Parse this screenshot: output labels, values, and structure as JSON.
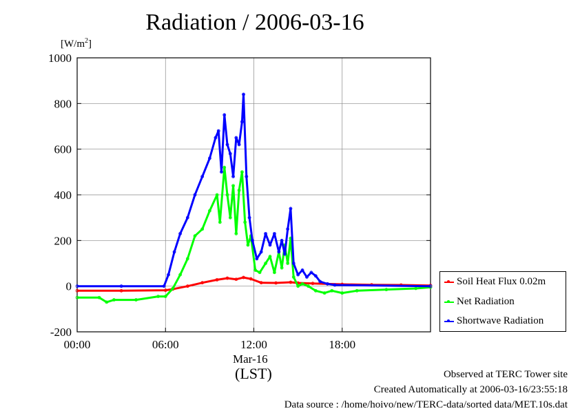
{
  "title": "Radiation / 2006-03-16",
  "unit": {
    "base": "[W/m",
    "sup": "2",
    "close": "]"
  },
  "xsub": {
    "date": "Mar-16",
    "zone": "(LST)"
  },
  "legend": [
    {
      "label": "Soil Heat Flux 0.02m",
      "color": "#ff0000"
    },
    {
      "label": "Net Radiation",
      "color": "#00ff00"
    },
    {
      "label": "Shortwave Radiation",
      "color": "#0000ff"
    }
  ],
  "footer": {
    "line1": "Observed at TERC Tower site",
    "line2": "Created Automatically at 2006-03-16/23:55:18",
    "line3": "Data source : /home/hoivo/new/TERC-data/sorted  data/MET.10s.dat"
  },
  "chart_data": {
    "type": "line",
    "title": "Radiation / 2006-03-16",
    "xlabel": "(LST)",
    "ylabel": "[W/m2]",
    "xlim": [
      0,
      24
    ],
    "ylim": [
      -200,
      1000
    ],
    "xticks": [
      {
        "value": 0,
        "label": "00:00"
      },
      {
        "value": 6,
        "label": "06:00"
      },
      {
        "value": 12,
        "label": "12:00"
      },
      {
        "value": 18,
        "label": "18:00"
      }
    ],
    "yticks": [
      -200,
      0,
      200,
      400,
      600,
      800,
      1000
    ],
    "grid": true,
    "legend_position": "right-bottom",
    "series": [
      {
        "name": "Soil Heat Flux 0.02m",
        "color": "#ff0000",
        "x": [
          0,
          3,
          6,
          6.5,
          7.5,
          8.5,
          9.5,
          10.2,
          10.8,
          11.3,
          11.8,
          12.5,
          13.5,
          14.5,
          15,
          16,
          17,
          18,
          20,
          22,
          24
        ],
        "y": [
          -20,
          -20,
          -18,
          -13,
          0,
          15,
          28,
          35,
          30,
          38,
          32,
          15,
          14,
          17,
          14,
          12,
          10,
          8,
          6,
          5,
          3
        ]
      },
      {
        "name": "Net Radiation",
        "color": "#00ff00",
        "x": [
          0,
          1.5,
          2,
          2.5,
          4,
          5.5,
          6,
          6.5,
          7,
          7.5,
          8,
          8.5,
          9,
          9.5,
          9.7,
          10,
          10.2,
          10.4,
          10.6,
          10.8,
          11,
          11.2,
          11.4,
          11.6,
          11.8,
          12.1,
          12.4,
          12.8,
          13.1,
          13.4,
          13.7,
          13.9,
          14.1,
          14.3,
          14.5,
          14.7,
          15,
          15.3,
          15.7,
          16.2,
          16.8,
          17.3,
          18,
          19,
          21,
          23,
          24
        ],
        "y": [
          -50,
          -50,
          -70,
          -60,
          -60,
          -45,
          -45,
          -10,
          50,
          120,
          220,
          250,
          330,
          400,
          280,
          520,
          400,
          300,
          440,
          230,
          420,
          500,
          280,
          180,
          220,
          70,
          60,
          100,
          130,
          60,
          150,
          80,
          180,
          100,
          210,
          40,
          0,
          10,
          0,
          -20,
          -30,
          -20,
          -30,
          -20,
          -15,
          -10,
          -5
        ]
      },
      {
        "name": "Shortwave Radiation",
        "color": "#0000ff",
        "x": [
          0,
          3,
          5.9,
          6.2,
          6.6,
          7,
          7.5,
          8,
          8.5,
          9,
          9.4,
          9.6,
          9.8,
          10,
          10.2,
          10.4,
          10.6,
          10.8,
          11,
          11.2,
          11.3,
          11.5,
          11.7,
          11.9,
          12.2,
          12.5,
          12.8,
          13.1,
          13.4,
          13.7,
          13.9,
          14.1,
          14.3,
          14.5,
          14.7,
          15,
          15.3,
          15.6,
          15.9,
          16.2,
          16.5,
          17,
          17.5,
          24
        ],
        "y": [
          0,
          0,
          0,
          50,
          150,
          230,
          300,
          400,
          480,
          560,
          650,
          680,
          500,
          750,
          620,
          580,
          480,
          650,
          620,
          720,
          840,
          480,
          300,
          200,
          120,
          150,
          230,
          180,
          230,
          150,
          200,
          140,
          250,
          340,
          100,
          50,
          70,
          40,
          60,
          45,
          20,
          10,
          5,
          0
        ]
      }
    ]
  }
}
